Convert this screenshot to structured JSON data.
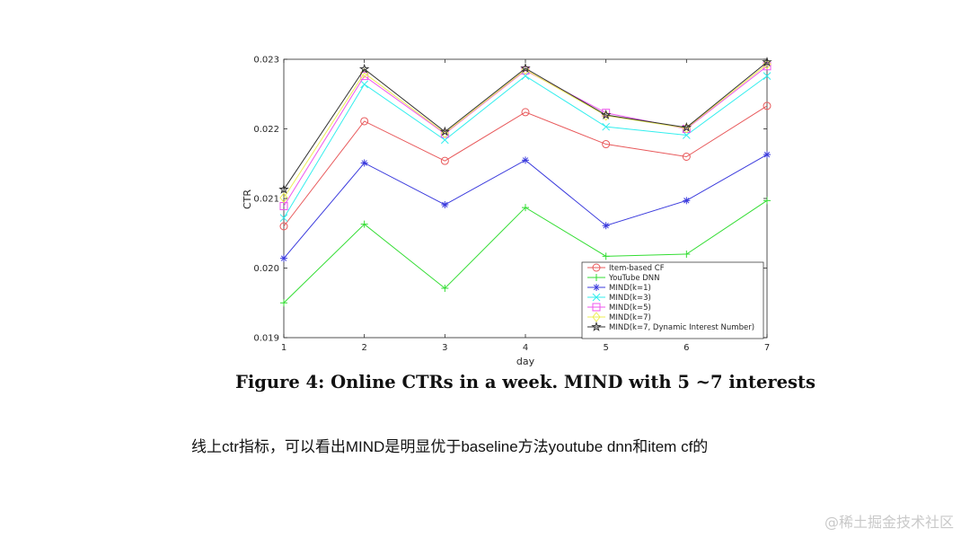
{
  "figure_caption": "Figure 4: Online CTRs in a week. MIND with 5 ~7 interests",
  "note_text": "线上ctr指标，可以看出MIND是明显优于baseline方法youtube dnn和item cf的",
  "watermark": "@稀土掘金技术社区",
  "chart_data": {
    "type": "line",
    "title": "",
    "xlabel": "day",
    "ylabel": "CTR",
    "x": [
      1,
      2,
      3,
      4,
      5,
      6,
      7
    ],
    "x_ticks": [
      "1",
      "2",
      "3",
      "4",
      "5",
      "6",
      "7"
    ],
    "y_ticks": [
      "0.019",
      "0.020",
      "0.021",
      "0.022",
      "0.023"
    ],
    "xlim": [
      1,
      7
    ],
    "ylim": [
      0.019,
      0.023
    ],
    "grid": false,
    "legend_placement": "bottom-right",
    "series": [
      {
        "name": "Item-based CF",
        "color": "#e8595b",
        "marker": "circle",
        "values": [
          0.0206,
          0.02211,
          0.02154,
          0.02224,
          0.02178,
          0.0216,
          0.02233
        ]
      },
      {
        "name": "YouTube DNN",
        "color": "#33dd33",
        "marker": "plus",
        "values": [
          0.0195,
          0.02063,
          0.01971,
          0.02087,
          0.02017,
          0.0202,
          0.02097
        ]
      },
      {
        "name": "MIND(k=1)",
        "color": "#3b3bdd",
        "marker": "star",
        "values": [
          0.02014,
          0.02151,
          0.02091,
          0.02155,
          0.02061,
          0.02097,
          0.02163
        ]
      },
      {
        "name": "MIND(k=3)",
        "color": "#33eeee",
        "marker": "x",
        "values": [
          0.02072,
          0.02264,
          0.02184,
          0.02276,
          0.02203,
          0.02191,
          0.02276
        ]
      },
      {
        "name": "MIND(k=5)",
        "color": "#ee55ee",
        "marker": "square",
        "values": [
          0.02089,
          0.02276,
          0.02193,
          0.02284,
          0.02223,
          0.022,
          0.0229
        ]
      },
      {
        "name": "MIND(k=7)",
        "color": "#eeee55",
        "marker": "diamond",
        "values": [
          0.02101,
          0.0228,
          0.02194,
          0.02285,
          0.02219,
          0.02201,
          0.02293
        ]
      },
      {
        "name": "MIND(k=7, Dynamic Interest Number)",
        "color": "#333333",
        "marker": "pentagram",
        "values": [
          0.02113,
          0.02286,
          0.02196,
          0.02287,
          0.0222,
          0.02202,
          0.02296
        ]
      }
    ]
  }
}
